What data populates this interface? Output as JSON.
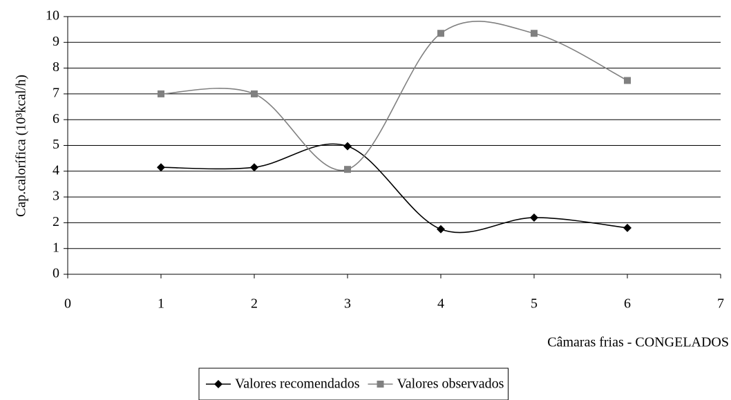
{
  "chart_data": {
    "type": "line",
    "y_label": "Cap.calorífica (10³kcal/h)",
    "x_label": "Câmaras frias - CONGELADOS",
    "x": [
      1,
      2,
      3,
      4,
      5,
      6
    ],
    "series": [
      {
        "name": "Valores recomendados",
        "color": "#000000",
        "marker": "diamond",
        "values": [
          4.15,
          4.15,
          4.97,
          1.75,
          2.2,
          1.8
        ]
      },
      {
        "name": "Valores observados",
        "color": "#808080",
        "marker": "square",
        "values": [
          7.0,
          7.0,
          4.07,
          9.35,
          9.35,
          7.52
        ]
      }
    ],
    "xlim": [
      0,
      7
    ],
    "xticks": [
      0,
      1,
      2,
      3,
      4,
      5,
      6,
      7
    ],
    "ylim": [
      0,
      10
    ],
    "yticks": [
      0,
      1,
      2,
      3,
      4,
      5,
      6,
      7,
      8,
      9,
      10
    ],
    "grid": true,
    "smooth": true,
    "legend": "bottom"
  }
}
